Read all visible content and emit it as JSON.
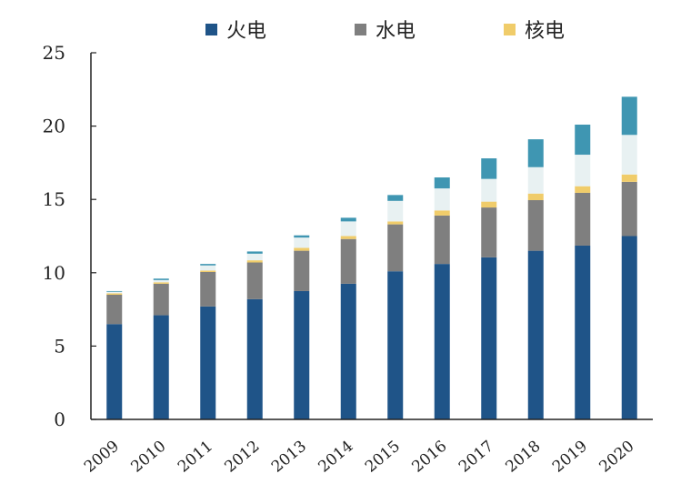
{
  "chart_data": {
    "type": "bar",
    "stacked": true,
    "title": "",
    "xlabel": "",
    "ylabel": "",
    "ylim": [
      0,
      25
    ],
    "yticks": [
      0,
      5,
      10,
      15,
      20,
      25
    ],
    "grid": false,
    "legend_position": "top",
    "categories": [
      "2009",
      "2010",
      "2011",
      "2012",
      "2013",
      "2014",
      "2015",
      "2016",
      "2017",
      "2018",
      "2019",
      "2020"
    ],
    "series": [
      {
        "name": "火电",
        "color": "#1f5488",
        "values": [
          6.5,
          7.1,
          7.7,
          8.2,
          8.75,
          9.25,
          10.1,
          10.6,
          11.05,
          11.5,
          11.85,
          12.5
        ]
      },
      {
        "name": "水电",
        "color": "#7f7f7f",
        "values": [
          2.0,
          2.15,
          2.35,
          2.5,
          2.75,
          3.05,
          3.2,
          3.3,
          3.4,
          3.45,
          3.6,
          3.7
        ]
      },
      {
        "name": "核电",
        "color": "#f0cc6a",
        "values": [
          0.1,
          0.1,
          0.1,
          0.15,
          0.2,
          0.2,
          0.2,
          0.35,
          0.4,
          0.45,
          0.45,
          0.5
        ]
      },
      {
        "color": "#e8f1f2",
        "values": [
          0.1,
          0.15,
          0.35,
          0.45,
          0.7,
          1.0,
          1.4,
          1.5,
          1.55,
          1.8,
          2.15,
          2.7
        ]
      },
      {
        "color": "#3f96b2",
        "values": [
          0.05,
          0.1,
          0.1,
          0.15,
          0.15,
          0.25,
          0.4,
          0.75,
          1.4,
          1.9,
          2.05,
          2.6
        ]
      }
    ]
  }
}
